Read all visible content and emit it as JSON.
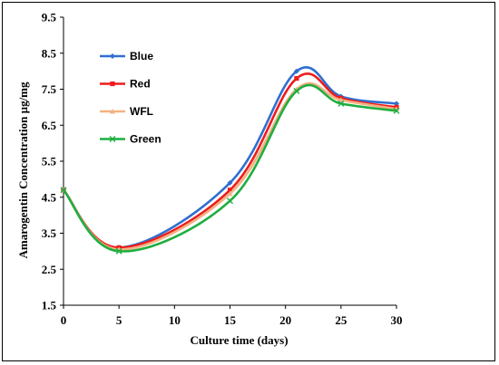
{
  "chart_data": {
    "type": "line",
    "xlabel": "Culture time (days)",
    "ylabel": "Amarogentin Concentration µg/mg",
    "xlim": [
      0,
      30
    ],
    "ylim": [
      1.5,
      9.5
    ],
    "xticks": [
      0,
      5,
      10,
      15,
      20,
      25,
      30
    ],
    "yticks": [
      1.5,
      2.5,
      3.5,
      4.5,
      5.5,
      6.5,
      7.5,
      8.5,
      9.5
    ],
    "grid": false,
    "legend_position": "top-left",
    "series": [
      {
        "name": "Blue",
        "color": "#2f6fd0",
        "marker": "diamond",
        "x": [
          0,
          5,
          15,
          21,
          25,
          30
        ],
        "y": [
          4.7,
          3.1,
          4.9,
          8.0,
          7.3,
          7.1
        ]
      },
      {
        "name": "Red",
        "color": "#ee1c1c",
        "marker": "square",
        "x": [
          0,
          5,
          15,
          21,
          25,
          30
        ],
        "y": [
          4.7,
          3.1,
          4.7,
          7.8,
          7.25,
          7.0
        ]
      },
      {
        "name": "WFL",
        "color": "#f4b183",
        "marker": "triangle",
        "x": [
          0,
          5,
          15,
          21,
          25,
          30
        ],
        "y": [
          4.7,
          3.05,
          4.6,
          7.5,
          7.2,
          6.95
        ]
      },
      {
        "name": "Green",
        "color": "#1fae3f",
        "marker": "x",
        "x": [
          0,
          5,
          15,
          21,
          25,
          30
        ],
        "y": [
          4.7,
          3.0,
          4.4,
          7.45,
          7.1,
          6.9
        ]
      }
    ]
  }
}
